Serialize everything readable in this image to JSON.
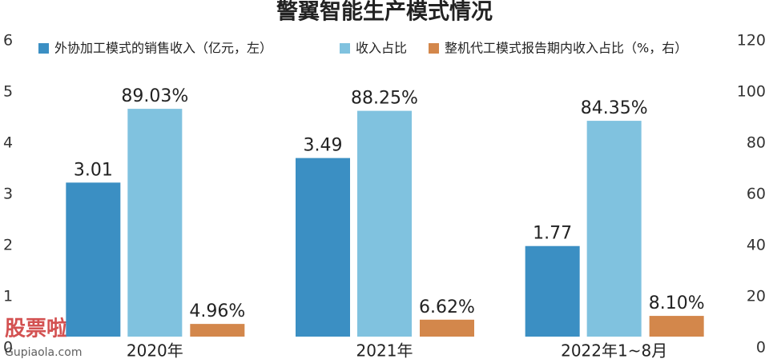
{
  "chart_data": {
    "type": "bar",
    "title": "警翼智能生产模式情况",
    "categories": [
      "2020年",
      "2021年",
      "2022年1~8月"
    ],
    "series": [
      {
        "name": "外协加工模式的销售收入（亿元，左）",
        "color": "#3b8fc3",
        "values": [
          3.01,
          3.49,
          1.77
        ]
      },
      {
        "name": "收入占比",
        "color": "#80c2df",
        "axis": "y2",
        "values": [
          89.03,
          88.25,
          84.35
        ],
        "value_labels": [
          "89.03%",
          "88.25%",
          "84.35%"
        ]
      },
      {
        "name": "整机代工模式报告期内收入占比（%，右）",
        "color": "#d3874b",
        "axis": "y2",
        "values": [
          4.96,
          6.62,
          8.1
        ],
        "value_labels": [
          "4.96%",
          "6.62%",
          "8.10%"
        ]
      }
    ],
    "ylim": [
      0,
      6
    ],
    "yticks": [
      0,
      1,
      2,
      3,
      4,
      5,
      6
    ],
    "y2lim": [
      0,
      120
    ],
    "y2ticks": [
      0,
      20,
      40,
      60,
      80,
      100,
      120
    ],
    "grid": false,
    "watermark": [
      "股票啦",
      "Gupiaola.com"
    ]
  }
}
